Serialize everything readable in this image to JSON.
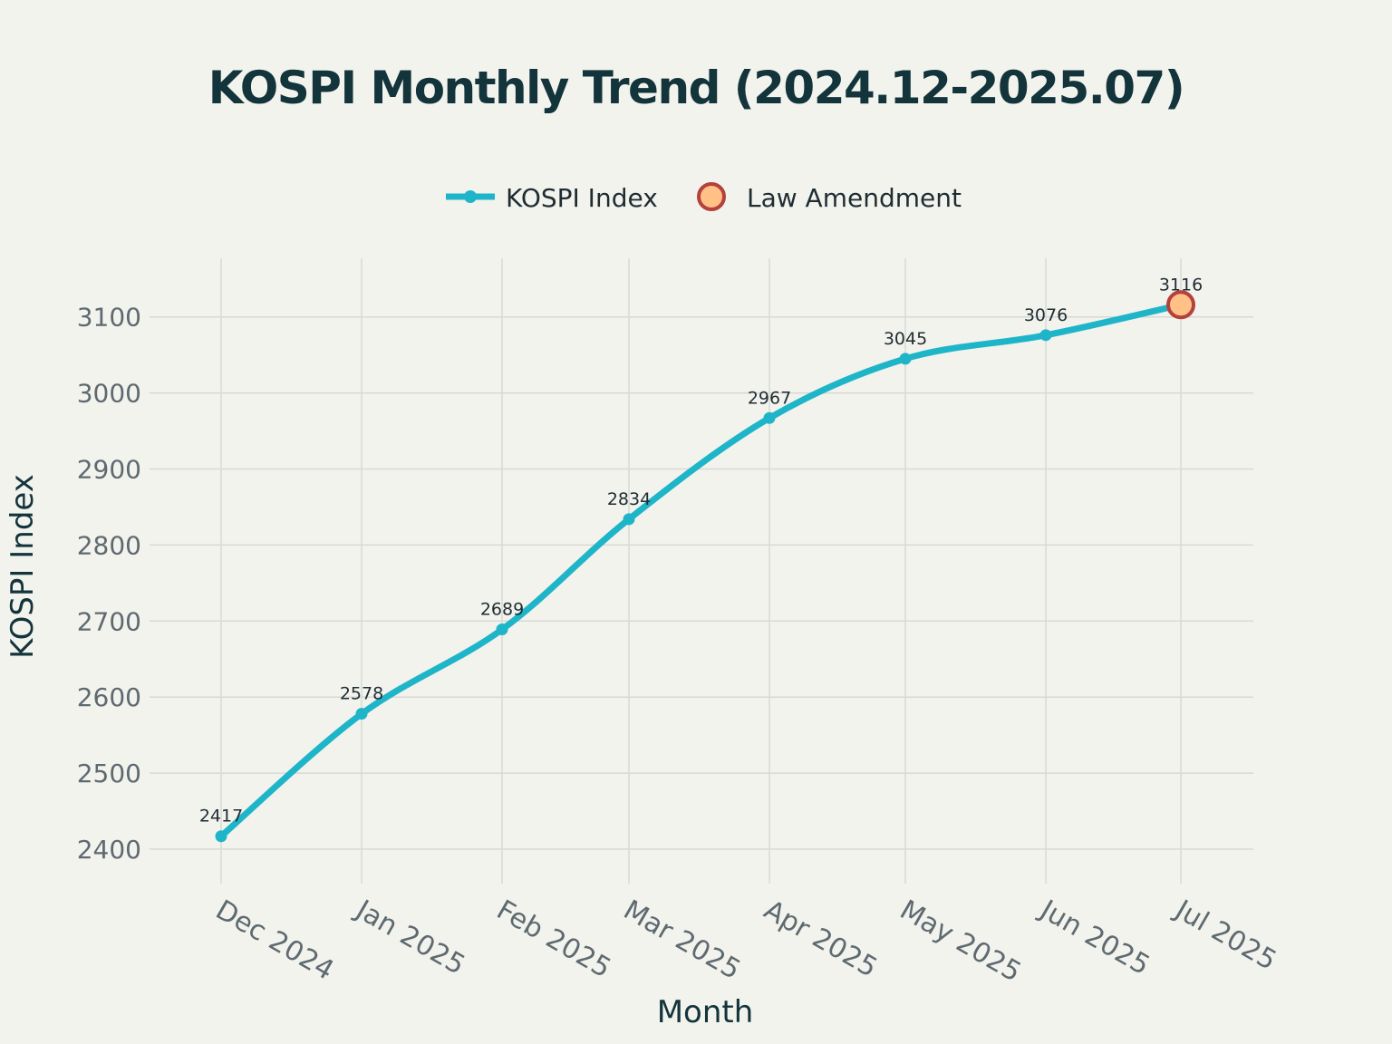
{
  "chart_data": {
    "type": "line",
    "title": "KOSPI Monthly Trend (2024.12-2025.07)",
    "xlabel": "Month",
    "ylabel": "KOSPI Index",
    "categories": [
      "Dec 2024",
      "Jan 2025",
      "Feb 2025",
      "Mar 2025",
      "Apr 2025",
      "May 2025",
      "Jun 2025",
      "Jul 2025"
    ],
    "series": [
      {
        "name": "KOSPI Index",
        "values": [
          2417,
          2578,
          2689,
          2834,
          2967,
          3045,
          3076,
          3116
        ],
        "data_labels": [
          "2417",
          "2578",
          "2689",
          "2834",
          "2967",
          "3045",
          "3076",
          "3116"
        ],
        "color": "#1fb5c9"
      },
      {
        "name": "Law Amendment",
        "category": "Jul 2025",
        "value": 3116,
        "fill_color": "#ffc185",
        "stroke_color": "#b4413c"
      }
    ],
    "yticks": [
      "2400",
      "2500",
      "2600",
      "2700",
      "2800",
      "2900",
      "3000",
      "3100"
    ],
    "grid": true,
    "legend_position": "top-center"
  }
}
